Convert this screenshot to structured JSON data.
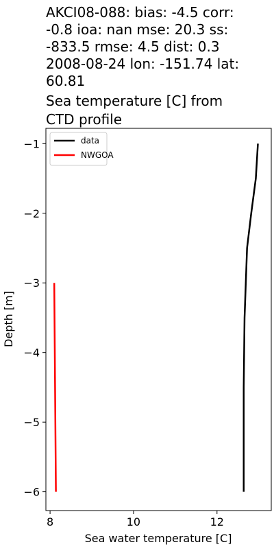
{
  "chart_data": {
    "type": "line",
    "title_lines": [
      "AKCI08-088: bias: -4.5  corr:",
      "-0.8  ioa: nan  mse: 20.3  ss:",
      "-833.5  rmse: 4.5  dist: 0.3",
      "2008-08-24 lon: -151.74 lat:",
      "60.81",
      "Sea temperature [C] from",
      "CTD profile"
    ],
    "xlabel": "Sea water temperature [C]",
    "ylabel": "Depth [m]",
    "xlim": [
      7.9,
      13.3
    ],
    "ylim": [
      -6.27,
      -0.78
    ],
    "xticks": [
      8,
      10,
      12
    ],
    "xtick_labels": [
      "8",
      "10",
      "12"
    ],
    "yticks": [
      -1,
      -2,
      -3,
      -4,
      -5,
      -6
    ],
    "ytick_labels": [
      "−1",
      "−2",
      "−3",
      "−4",
      "−5",
      "−6"
    ],
    "grid": false,
    "legend_position": "upper left",
    "series": [
      {
        "name": "data",
        "color": "#000000",
        "points": [
          {
            "x": 12.98,
            "y": -1.0
          },
          {
            "x": 12.93,
            "y": -1.5
          },
          {
            "x": 12.82,
            "y": -2.0
          },
          {
            "x": 12.72,
            "y": -2.5
          },
          {
            "x": 12.69,
            "y": -3.0
          },
          {
            "x": 12.66,
            "y": -3.5
          },
          {
            "x": 12.65,
            "y": -4.0
          },
          {
            "x": 12.64,
            "y": -4.5
          },
          {
            "x": 12.64,
            "y": -5.0
          },
          {
            "x": 12.64,
            "y": -5.5
          },
          {
            "x": 12.64,
            "y": -6.0
          }
        ]
      },
      {
        "name": "NWGOA",
        "color": "#ff0000",
        "points": [
          {
            "x": 8.1,
            "y": -3.0
          },
          {
            "x": 8.12,
            "y": -4.5
          },
          {
            "x": 8.14,
            "y": -6.0
          }
        ]
      }
    ]
  }
}
